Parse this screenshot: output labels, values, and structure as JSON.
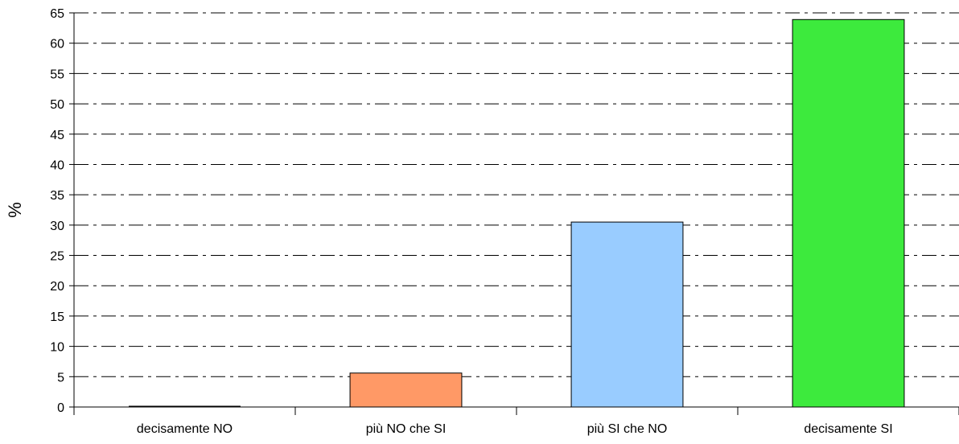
{
  "chart_data": {
    "type": "bar",
    "categories": [
      "decisamente NO",
      "più NO che SI",
      "più SI che NO",
      "decisamente SI"
    ],
    "values": [
      0,
      5.6,
      30.5,
      63.9
    ],
    "bar_colors": [
      "#cccccc",
      "#ff9966",
      "#99ccff",
      "#3dea3d"
    ],
    "ylabel": "%",
    "xlabel": "",
    "ylim": [
      0,
      65
    ],
    "yticks": [
      0,
      5,
      10,
      15,
      20,
      25,
      30,
      35,
      40,
      45,
      50,
      55,
      60,
      65
    ],
    "grid": "horizontal dash-dot"
  }
}
